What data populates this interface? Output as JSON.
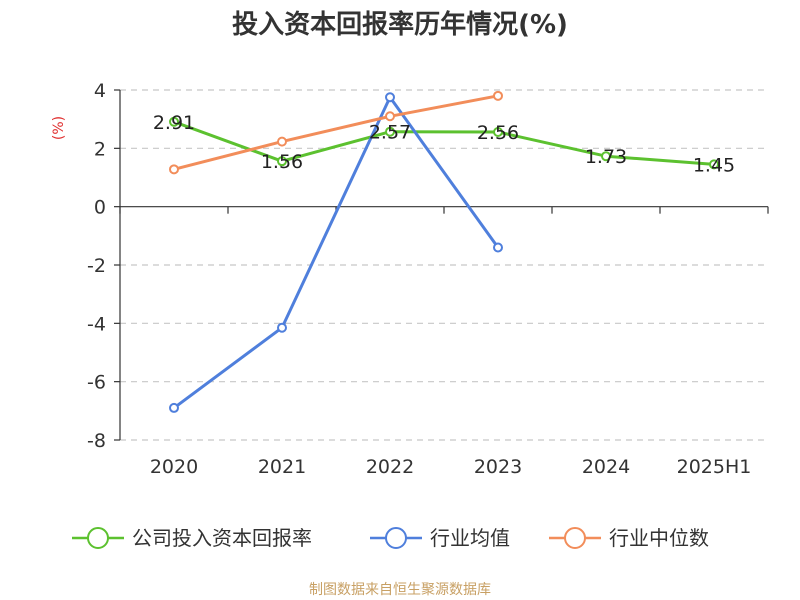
{
  "chart_data": {
    "type": "line",
    "title": "投入资本回报率历年情况(%)",
    "ylabel": "(%)",
    "categories": [
      "2020",
      "2021",
      "2022",
      "2023",
      "2024",
      "2025H1"
    ],
    "ylim": [
      -8,
      4
    ],
    "yticks": [
      4,
      2,
      0,
      -2,
      -4,
      -6,
      -8
    ],
    "grid": true,
    "legend_position": "bottom",
    "series": [
      {
        "name": "公司投入资本回报率",
        "color": "#5cc12f",
        "values": [
          2.91,
          1.56,
          2.57,
          2.56,
          1.73,
          1.45
        ],
        "labels": [
          "2.91",
          "1.56",
          "2.57",
          "2.56",
          "1.73",
          "1.45"
        ]
      },
      {
        "name": "行业均值",
        "color": "#4f7fdc",
        "values": [
          -6.9,
          -4.15,
          3.75,
          -1.4,
          null,
          null
        ]
      },
      {
        "name": "行业中位数",
        "color": "#f28d5a",
        "values": [
          1.28,
          2.23,
          3.1,
          3.8,
          null,
          null
        ]
      }
    ],
    "source": "制图数据来自恒生聚源数据库"
  }
}
